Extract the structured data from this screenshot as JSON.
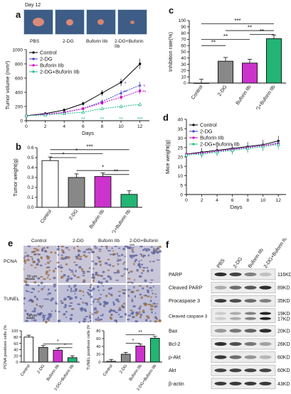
{
  "panels": {
    "a": "a",
    "b": "b",
    "c": "c",
    "d": "d",
    "e": "e",
    "f": "f"
  },
  "panel_a": {
    "day_label": "Day 12",
    "photo_labels": [
      "PBS",
      "2-DG",
      "Buforin IIb",
      "2-DG+Buforin IIb"
    ],
    "photo_bg": "#3d5d86"
  },
  "colors": {
    "control": "#000000",
    "dg": "#3a3ad0",
    "buforin": "#cc00cc",
    "combo": "#1bbf83",
    "bar_green": "#22b573",
    "bar_magenta": "#cc33cc"
  },
  "chart_data": [
    {
      "id": "a-growth",
      "type": "line",
      "xlabel": "Days",
      "ylabel": "Tumor volume (mm³)",
      "x": [
        0,
        2,
        4,
        6,
        8,
        10,
        12
      ],
      "xticks": [
        "0",
        "2",
        "4",
        "6",
        "8",
        "10",
        "12"
      ],
      "yticks": [
        "0",
        "200",
        "400",
        "600",
        "800",
        "1000"
      ],
      "ylim": [
        0,
        1000
      ],
      "legend_position": "top-left",
      "series": [
        {
          "name": "Control",
          "values": [
            70,
            100,
            150,
            240,
            390,
            540,
            800
          ]
        },
        {
          "name": "2-DG",
          "values": [
            70,
            90,
            120,
            170,
            270,
            390,
            500
          ]
        },
        {
          "name": "Buforin IIb",
          "values": [
            70,
            90,
            115,
            170,
            250,
            330,
            420
          ]
        },
        {
          "name": "2-DG+Buforin IIb",
          "values": [
            70,
            80,
            100,
            120,
            170,
            200,
            230
          ]
        }
      ],
      "annotations": [
        "*",
        "**",
        "*",
        "**",
        "**",
        "**",
        "***"
      ]
    },
    {
      "id": "b-weight",
      "type": "bar",
      "ylabel": "Tumor weight(g)",
      "categories": [
        "Control",
        "2-DG",
        "Buforin IIb",
        "2-DG+Buforin IIb"
      ],
      "values": [
        0.47,
        0.3,
        0.31,
        0.13
      ],
      "yticks": [
        "0.0",
        "0.1",
        "0.2",
        "0.3",
        "0.4",
        "0.5",
        "0.6"
      ],
      "ylim": [
        0,
        0.6
      ],
      "annotations": [
        "*",
        "*",
        "***",
        "*",
        "**"
      ]
    },
    {
      "id": "c-inhibition",
      "type": "bar",
      "ylabel": "Inhibition rate(%)",
      "categories": [
        "Control",
        "2-DG",
        "Buforin IIb",
        "2-DG+Buforin IIb"
      ],
      "values": [
        0,
        35,
        32,
        71
      ],
      "yticks": [
        "0",
        "10",
        "20",
        "30",
        "40",
        "50",
        "60",
        "70",
        "80",
        "90",
        "100"
      ],
      "ylim": [
        0,
        100
      ],
      "annotations": [
        "**",
        "**",
        "**",
        "**",
        "***"
      ]
    },
    {
      "id": "d-mice-weight",
      "type": "line",
      "xlabel": "Days",
      "ylabel": "Mice weight(g)",
      "x": [
        0,
        2,
        4,
        6,
        8,
        10,
        12
      ],
      "xticks": [
        "0",
        "2",
        "4",
        "6",
        "8",
        "10",
        "12"
      ],
      "yticks": [
        "0",
        "5",
        "10",
        "15",
        "20",
        "25",
        "30",
        "35",
        "40"
      ],
      "ylim": [
        0,
        40
      ],
      "legend_position": "top-left",
      "series": [
        {
          "name": "Control",
          "values": [
            21.5,
            22.5,
            23.5,
            24.5,
            25.5,
            26.5,
            28.5
          ]
        },
        {
          "name": "2-DG",
          "values": [
            21.5,
            22,
            23,
            24,
            25,
            26,
            27.5
          ]
        },
        {
          "name": "Buforin IIb",
          "values": [
            21.5,
            22,
            23,
            24,
            25,
            26,
            27
          ]
        },
        {
          "name": "2-DG+Buforin IIb",
          "values": [
            21,
            21.5,
            22.5,
            23.5,
            24.5,
            25.5,
            26.5
          ]
        }
      ]
    },
    {
      "id": "e-pcna",
      "type": "bar",
      "ylabel": "PCNA positives cells (%)",
      "categories": [
        "Control",
        "2-DG",
        "Buforin IIb",
        "2-DG+Buforin IIb"
      ],
      "values": [
        80,
        47,
        38,
        14
      ],
      "yticks": [
        "0",
        "20",
        "40",
        "60",
        "80",
        "100"
      ],
      "ylim": [
        0,
        100
      ],
      "annotations": [
        "*",
        "*"
      ]
    },
    {
      "id": "e-tunel",
      "type": "bar",
      "ylabel": "TUNEL positives cells (%)",
      "categories": [
        "Control",
        "2-DG",
        "Buforin IIb",
        "2-DG+Buforin IIb"
      ],
      "values": [
        2,
        20,
        41,
        61
      ],
      "yticks": [
        "0",
        "20",
        "40",
        "60",
        "80"
      ],
      "ylim": [
        0,
        80
      ],
      "annotations": [
        "*",
        "**"
      ]
    }
  ],
  "panel_e": {
    "col_labels": [
      "Control",
      "2-DG",
      "Buforin IIb",
      "2-DG+Buforin IIb"
    ],
    "row_labels": [
      "PCNA",
      "TUNEL"
    ],
    "scale_bar": "50 μm"
  },
  "panel_f": {
    "lane_labels": [
      "PBS",
      "2-DG",
      "Buforin IIb",
      "2-DG+Buforin IIb"
    ],
    "rows": [
      {
        "name": "PARP",
        "size": "116KD"
      },
      {
        "name": "Cleaved PARP",
        "size": "89KD"
      },
      {
        "name": "Procaspase 3",
        "size": "35KD"
      },
      {
        "name": "Cleaved caspase 3",
        "size": "19KD",
        "size2": "17KD"
      },
      {
        "name": "Bax",
        "size": "20KD"
      },
      {
        "name": "Bcl-2",
        "size": "26KD"
      },
      {
        "name": "p-Akt",
        "size": "60KD"
      },
      {
        "name": "Akt",
        "size": "60KD"
      },
      {
        "name": "β-actin",
        "size": "43KD"
      }
    ]
  }
}
